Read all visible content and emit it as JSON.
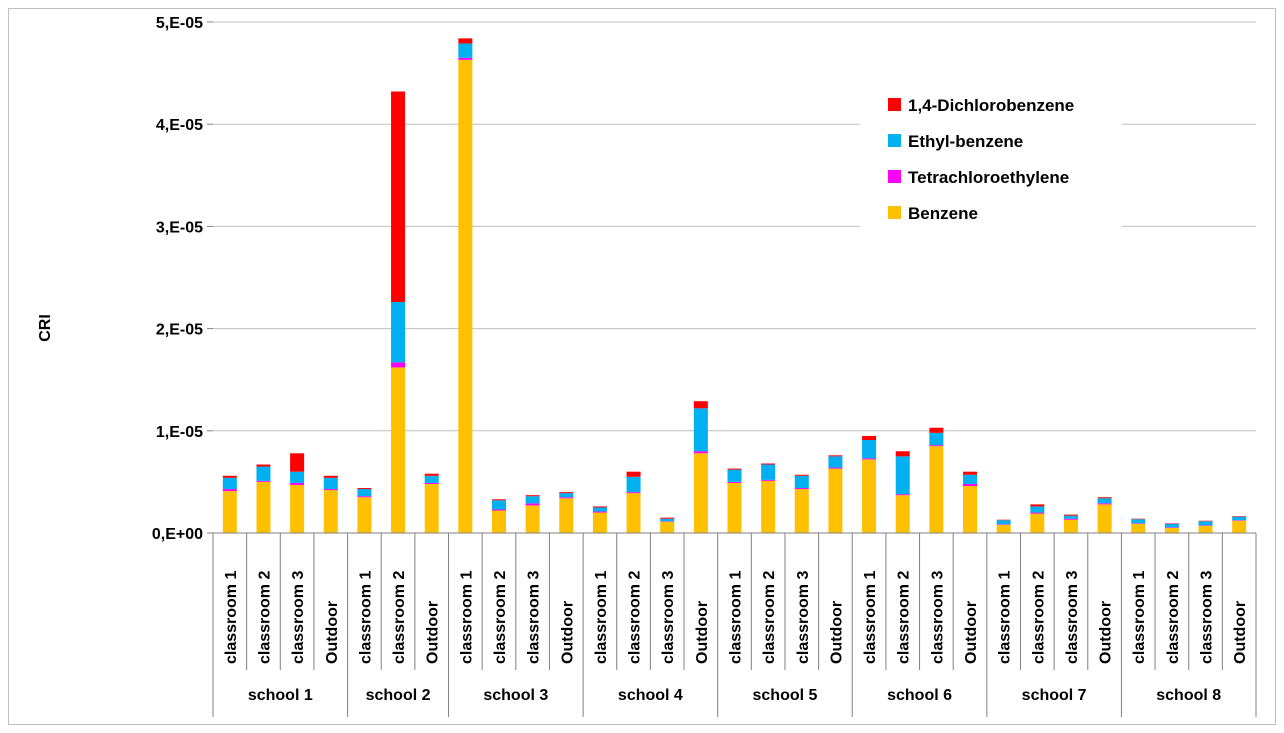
{
  "chart_data": {
    "type": "bar",
    "stacked": true,
    "title": "",
    "xlabel": "",
    "ylabel": "CRI",
    "ylim": [
      0,
      5e-05
    ],
    "yticks": [
      {
        "value": 0,
        "label": "0,E+00"
      },
      {
        "value": 1e-05,
        "label": "1,E-05"
      },
      {
        "value": 2e-05,
        "label": "2,E-05"
      },
      {
        "value": 3e-05,
        "label": "3,E-05"
      },
      {
        "value": 4e-05,
        "label": "4,E-05"
      },
      {
        "value": 5e-05,
        "label": "5,E-05"
      }
    ],
    "grid": "horizontal",
    "legend_position": "top-right",
    "groups": [
      {
        "name": "school 1",
        "categories": [
          "classroom 1",
          "classroom 2",
          "classroom 3",
          "Outdoor"
        ]
      },
      {
        "name": "school 2",
        "categories": [
          "classroom 1",
          "classroom 2",
          "Outdoor"
        ]
      },
      {
        "name": "school 3",
        "categories": [
          "classroom 1",
          "classroom 2",
          "classroom 3",
          "Outdoor"
        ]
      },
      {
        "name": "school 4",
        "categories": [
          "classroom 1",
          "classroom 2",
          "classroom 3",
          "Outdoor"
        ]
      },
      {
        "name": "school 5",
        "categories": [
          "classroom 1",
          "classroom 2",
          "classroom 3",
          "Outdoor"
        ]
      },
      {
        "name": "school 6",
        "categories": [
          "classroom 1",
          "classroom 2",
          "classroom 3",
          "Outdoor"
        ]
      },
      {
        "name": "school 7",
        "categories": [
          "classroom 1",
          "classroom 2",
          "classroom 3",
          "Outdoor"
        ]
      },
      {
        "name": "school 8",
        "categories": [
          "classroom 1",
          "classroom 2",
          "classroom 3",
          "Outdoor"
        ]
      }
    ],
    "series": [
      {
        "name": "Benzene",
        "color": "#FFC000",
        "values": [
          4.1e-06,
          5e-06,
          4.7e-06,
          4.2e-06,
          3.5e-06,
          1.62e-05,
          4.8e-06,
          4.63e-05,
          2.2e-06,
          2.7e-06,
          3.4e-06,
          2e-06,
          3.9e-06,
          1.1e-06,
          7.8e-06,
          4.9e-06,
          5.1e-06,
          4.3e-06,
          6.3e-06,
          7.2e-06,
          3.7e-06,
          8.5e-06,
          4.6e-06,
          8e-07,
          1.9e-06,
          1.3e-06,
          2.8e-06,
          9e-07,
          5e-07,
          7e-07,
          1.2e-06
        ]
      },
      {
        "name": "Tetrachloroethylene",
        "color": "#FF00FF",
        "values": [
          2e-07,
          1e-07,
          2e-07,
          1e-07,
          1e-07,
          5e-07,
          1e-07,
          2e-07,
          1e-07,
          2e-07,
          1e-07,
          1e-07,
          1e-07,
          5e-08,
          2e-07,
          1e-07,
          1e-07,
          1e-07,
          1e-07,
          1e-07,
          1e-07,
          1e-07,
          2e-07,
          5e-08,
          1e-07,
          1e-07,
          1e-07,
          5e-08,
          5e-08,
          5e-08,
          5e-08
        ]
      },
      {
        "name": "Ethyl-benzene",
        "color": "#00B0F0",
        "values": [
          1.1e-06,
          1.4e-06,
          1.1e-06,
          1.1e-06,
          7e-07,
          5.9e-06,
          7e-07,
          1.4e-06,
          9e-07,
          7e-07,
          4e-07,
          4e-07,
          1.5e-06,
          2.5e-07,
          4.2e-06,
          1.2e-06,
          1.5e-06,
          1.2e-06,
          1.1e-06,
          1.8e-06,
          3.7e-06,
          1.2e-06,
          9e-07,
          4e-07,
          6e-07,
          3e-07,
          5e-07,
          4e-07,
          3.5e-07,
          4e-07,
          3.5e-07
        ]
      },
      {
        "name": "1,4-Dichlorobenzene",
        "color": "#FF0000",
        "values": [
          2e-07,
          2e-07,
          1.8e-06,
          2e-07,
          1e-07,
          2.06e-05,
          2e-07,
          5e-07,
          1e-07,
          1e-07,
          1e-07,
          1e-07,
          5e-07,
          1e-07,
          7e-07,
          1e-07,
          1e-07,
          1e-07,
          1e-07,
          4e-07,
          5e-07,
          5e-07,
          3e-07,
          5e-08,
          2e-07,
          1e-07,
          1e-07,
          5e-08,
          5e-08,
          5e-08,
          5e-08
        ]
      }
    ],
    "legend": [
      "1,4-Dichlorobenzene",
      "Ethyl-benzene",
      "Tetrachloroethylene",
      "Benzene"
    ]
  }
}
